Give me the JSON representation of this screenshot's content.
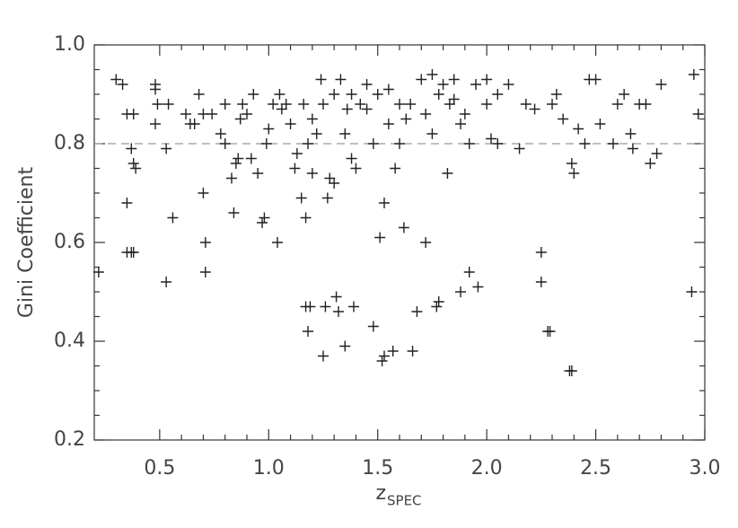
{
  "chart_data": {
    "type": "scatter",
    "y_label": "Gini Coefficient",
    "x_label": "z",
    "x_label_sub": "SPEC",
    "xlim": [
      0.2,
      3.0
    ],
    "ylim": [
      0.2,
      1.0
    ],
    "xticks": [
      0.5,
      {
        "value": 1.0,
        "label": "1.0"
      },
      1.5,
      {
        "value": 2.0,
        "label": "2.0"
      },
      2.5,
      {
        "value": 3.0,
        "label": "3.0"
      }
    ],
    "yticks": [
      0.2,
      0.4,
      0.6,
      0.8,
      {
        "value": 1.0,
        "label": "1.0"
      }
    ],
    "hline": 0.8,
    "color": "#222222",
    "x": [
      0.22,
      0.35,
      0.35,
      0.37,
      0.38,
      0.37,
      0.38,
      0.39,
      0.35,
      0.3,
      0.33,
      0.38,
      0.53,
      0.53,
      0.56,
      0.48,
      0.48,
      0.49,
      0.48,
      0.54,
      0.62,
      0.64,
      0.66,
      0.68,
      0.7,
      0.71,
      0.71,
      0.7,
      0.74,
      0.78,
      0.8,
      0.8,
      0.83,
      0.84,
      0.85,
      0.86,
      0.87,
      0.88,
      0.9,
      0.92,
      0.93,
      0.95,
      0.97,
      0.98,
      0.99,
      1.0,
      1.02,
      1.04,
      1.05,
      1.06,
      1.08,
      1.1,
      1.12,
      1.13,
      1.15,
      1.16,
      1.17,
      1.18,
      1.17,
      1.18,
      1.19,
      1.2,
      1.22,
      1.24,
      1.25,
      1.26,
      1.27,
      1.28,
      1.3,
      1.31,
      1.32,
      1.3,
      1.33,
      1.35,
      1.36,
      1.38,
      1.39,
      1.4,
      1.42,
      1.45,
      1.48,
      1.51,
      1.52,
      1.53,
      1.53,
      1.55,
      1.57,
      1.58,
      1.6,
      1.62,
      1.63,
      1.66,
      1.68,
      1.7,
      1.72,
      1.75,
      1.77,
      1.78,
      1.8,
      1.82,
      1.83,
      1.85,
      1.88,
      1.9,
      1.92,
      1.96,
      2.0,
      2.02,
      2.05,
      2.1,
      2.15,
      2.18,
      2.22,
      2.25,
      2.25,
      2.28,
      2.29,
      2.3,
      2.32,
      2.35,
      2.38,
      2.39,
      2.39,
      2.4,
      2.42,
      2.45,
      2.47,
      2.5,
      2.52,
      2.58,
      2.6,
      2.63,
      2.66,
      2.67,
      2.7,
      2.73,
      2.75,
      2.78,
      2.8,
      2.95,
      2.97,
      2.94,
      1.45,
      1.5,
      1.55,
      1.65,
      1.75,
      1.78,
      1.85,
      1.95,
      2.0,
      1.38,
      1.25,
      1.2,
      1.35,
      1.6,
      1.92,
      2.05,
      1.88,
      1.72,
      1.48
    ],
    "values": [
      0.54,
      0.68,
      0.58,
      0.58,
      0.58,
      0.79,
      0.76,
      0.75,
      0.86,
      0.93,
      0.92,
      0.86,
      0.52,
      0.79,
      0.65,
      0.91,
      0.92,
      0.88,
      0.84,
      0.88,
      0.86,
      0.84,
      0.84,
      0.9,
      0.7,
      0.6,
      0.54,
      0.86,
      0.86,
      0.82,
      0.88,
      0.8,
      0.73,
      0.66,
      0.76,
      0.77,
      0.85,
      0.88,
      0.86,
      0.77,
      0.9,
      0.74,
      0.64,
      0.65,
      0.8,
      0.83,
      0.88,
      0.6,
      0.9,
      0.87,
      0.88,
      0.84,
      0.75,
      0.78,
      0.69,
      0.88,
      0.65,
      0.8,
      0.47,
      0.42,
      0.47,
      0.74,
      0.82,
      0.93,
      0.37,
      0.47,
      0.69,
      0.73,
      0.72,
      0.49,
      0.46,
      0.9,
      0.93,
      0.39,
      0.87,
      0.77,
      0.47,
      0.75,
      0.88,
      0.92,
      0.43,
      0.61,
      0.36,
      0.37,
      0.68,
      0.84,
      0.38,
      0.75,
      0.88,
      0.63,
      0.85,
      0.38,
      0.46,
      0.93,
      0.6,
      0.82,
      0.47,
      0.48,
      0.92,
      0.74,
      0.88,
      0.89,
      0.5,
      0.86,
      0.54,
      0.51,
      0.93,
      0.81,
      0.9,
      0.92,
      0.79,
      0.88,
      0.87,
      0.58,
      0.52,
      0.42,
      0.42,
      0.88,
      0.9,
      0.85,
      0.34,
      0.34,
      0.76,
      0.74,
      0.83,
      0.8,
      0.93,
      0.93,
      0.84,
      0.8,
      0.88,
      0.9,
      0.82,
      0.79,
      0.88,
      0.88,
      0.76,
      0.78,
      0.92,
      0.94,
      0.86,
      0.5,
      0.87,
      0.9,
      0.91,
      0.88,
      0.94,
      0.9,
      0.93,
      0.92,
      0.88,
      0.9,
      0.88,
      0.85,
      0.82,
      0.8,
      0.8,
      0.8,
      0.84,
      0.86,
      0.8
    ]
  }
}
